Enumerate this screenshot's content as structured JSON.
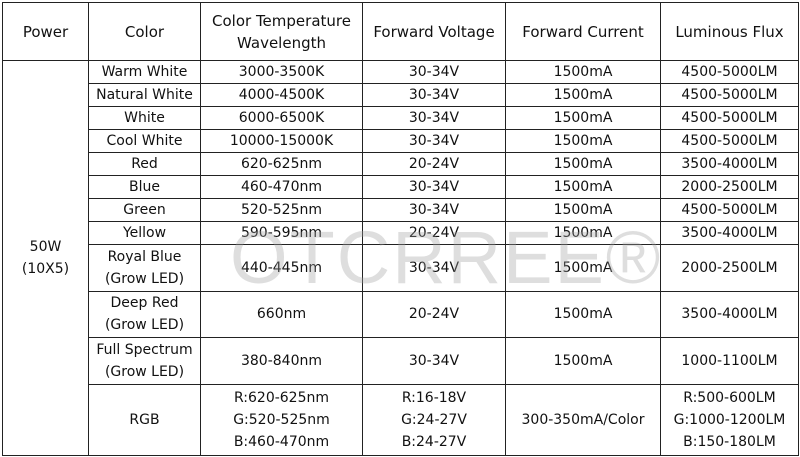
{
  "table": {
    "header": [
      [
        "Power"
      ],
      [
        "Color"
      ],
      [
        "Color Temperature",
        "Wavelength"
      ],
      [
        "Forward Voltage"
      ],
      [
        "Forward Current"
      ],
      [
        "Luminous Flux"
      ]
    ],
    "power": [
      "50W",
      "(10X5)"
    ],
    "rows": [
      [
        [
          "Warm White"
        ],
        [
          "3000-3500K"
        ],
        [
          "30-34V"
        ],
        [
          "1500mA"
        ],
        [
          "4500-5000LM"
        ]
      ],
      [
        [
          "Natural White"
        ],
        [
          "4000-4500K"
        ],
        [
          "30-34V"
        ],
        [
          "1500mA"
        ],
        [
          "4500-5000LM"
        ]
      ],
      [
        [
          "White"
        ],
        [
          "6000-6500K"
        ],
        [
          "30-34V"
        ],
        [
          "1500mA"
        ],
        [
          "4500-5000LM"
        ]
      ],
      [
        [
          "Cool White"
        ],
        [
          "10000-15000K"
        ],
        [
          "30-34V"
        ],
        [
          "1500mA"
        ],
        [
          "4500-5000LM"
        ]
      ],
      [
        [
          "Red"
        ],
        [
          "620-625nm"
        ],
        [
          "20-24V"
        ],
        [
          "1500mA"
        ],
        [
          "3500-4000LM"
        ]
      ],
      [
        [
          "Blue"
        ],
        [
          "460-470nm"
        ],
        [
          "30-34V"
        ],
        [
          "1500mA"
        ],
        [
          "2000-2500LM"
        ]
      ],
      [
        [
          "Green"
        ],
        [
          "520-525nm"
        ],
        [
          "30-34V"
        ],
        [
          "1500mA"
        ],
        [
          "4500-5000LM"
        ]
      ],
      [
        [
          "Yellow"
        ],
        [
          "590-595nm"
        ],
        [
          "20-24V"
        ],
        [
          "1500mA"
        ],
        [
          "3500-4000LM"
        ]
      ],
      [
        [
          "Royal Blue",
          "(Grow LED)"
        ],
        [
          "440-445nm"
        ],
        [
          "30-34V"
        ],
        [
          "1500mA"
        ],
        [
          "2000-2500LM"
        ]
      ],
      [
        [
          "Deep Red",
          "(Grow LED)"
        ],
        [
          "660nm"
        ],
        [
          "20-24V"
        ],
        [
          "1500mA"
        ],
        [
          "3500-4000LM"
        ]
      ],
      [
        [
          "Full Spectrum",
          "(Grow LED)"
        ],
        [
          "380-840nm"
        ],
        [
          "30-34V"
        ],
        [
          "1500mA"
        ],
        [
          "1000-1100LM"
        ]
      ],
      [
        [
          "RGB"
        ],
        [
          "R:620-625nm",
          "G:520-525nm",
          "B:460-470nm"
        ],
        [
          "R:16-18V",
          "G:24-27V",
          "B:24-27V"
        ],
        [
          "300-350mA/Color"
        ],
        [
          "R:500-600LM",
          "G:1000-1200LM",
          "B:150-180LM"
        ]
      ]
    ],
    "watermark": "OTCRREE®"
  }
}
